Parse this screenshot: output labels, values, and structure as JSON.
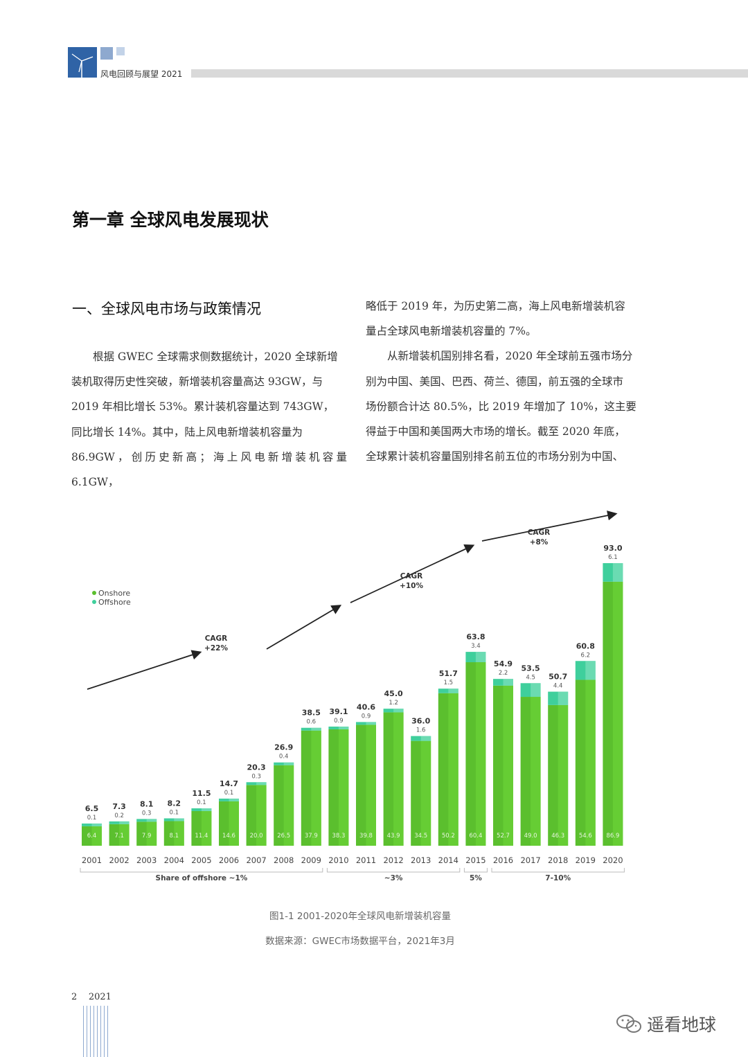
{
  "header": {
    "title": "风电回顾与展望 2021"
  },
  "chapter_title": "第一章 全球风电发展现状",
  "section_title": "一、全球风电市场与政策情况",
  "body": {
    "left_lines": [
      "根据 GWEC 全球需求侧数据统计，2020 全球新增",
      "装机取得历史性突破，新增装机容量高达 93GW，与",
      "2019 年相比增长 53%。累计装机容量达到 743GW，",
      "同比增长 14%。其中，陆上风电新增装机容量为",
      "86.9GW，创历史新高；海上风电新增装机容量 6.1GW，"
    ],
    "right_lines": [
      "略低于 2019 年，为历史第二高，海上风电新增装机容",
      "量占全球风电新增装机容量的 7%。",
      "从新增装机国别排名看，2020 年全球前五强市场分",
      "别为中国、美国、巴西、荷兰、德国，前五强的全球市",
      "场份额合计达 80.5%，比 2019 年增加了 10%，这主要",
      "得益于中国和美国两大市场的增长。截至 2020 年底，",
      "全球累计装机容量国别排名前五位的市场分别为中国、"
    ]
  },
  "chart_data": {
    "type": "bar",
    "stacked": true,
    "categories": [
      "2001",
      "2002",
      "2003",
      "2004",
      "2005",
      "2006",
      "2007",
      "2008",
      "2009",
      "2010",
      "2011",
      "2012",
      "2013",
      "2014",
      "2015",
      "2016",
      "2017",
      "2018",
      "2019",
      "2020"
    ],
    "series": [
      {
        "name": "Onshore",
        "color": "#5bbf2e",
        "values": [
          6.4,
          7.1,
          7.9,
          8.1,
          11.4,
          14.6,
          20.0,
          26.5,
          37.9,
          38.3,
          39.8,
          43.9,
          34.5,
          50.2,
          60.4,
          52.7,
          49.0,
          46.3,
          54.6,
          86.9
        ]
      },
      {
        "name": "Offshore",
        "color": "#3fcf9c",
        "values": [
          0.1,
          0.2,
          0.3,
          0.1,
          0.1,
          0.1,
          0.3,
          0.4,
          0.6,
          0.9,
          0.9,
          1.2,
          1.6,
          1.5,
          3.4,
          2.2,
          4.5,
          4.4,
          6.2,
          6.1
        ]
      }
    ],
    "totals": [
      "6.5",
      "7.3",
      "8.1",
      "8.2",
      "11.5",
      "14.7",
      "20.3",
      "26.9",
      "38.5",
      "39.1",
      "40.6",
      "45.0",
      "36.0",
      "51.7",
      "63.8",
      "54.9",
      "53.5",
      "50.7",
      "60.8",
      "93.0"
    ],
    "onshore_labels": [
      "6.4",
      "7.1",
      "7.9",
      "8.1",
      "11.4",
      "14.6",
      "20.0",
      "26.5",
      "37.9",
      "38.3",
      "39.8",
      "43.9",
      "34.5",
      "50.2",
      "60.4",
      "52.7",
      "49.0",
      "46.3",
      "54.6",
      "86.9"
    ],
    "offshore_labels": [
      "0.1",
      "0.2",
      "0.3",
      "0.1",
      "0.1",
      "0.1",
      "0.3",
      "0.4",
      "0.6",
      "0.9",
      "0.9",
      "1.2",
      "1.6",
      "1.5",
      "3.4",
      "2.2",
      "4.5",
      "4.4",
      "6.2",
      "6.1"
    ],
    "annotations": [
      {
        "label": "CAGR",
        "value": "+22%"
      },
      {
        "label": "CAGR",
        "value": "+10%"
      },
      {
        "label": "CAGR",
        "value": "+8%"
      }
    ],
    "share_groups": [
      {
        "label": "Share of offshore ~1%",
        "from": 0,
        "to": 8
      },
      {
        "label": "~3%",
        "from": 9,
        "to": 13
      },
      {
        "label": "5%",
        "from": 14,
        "to": 14
      },
      {
        "label": "7-10%",
        "from": 15,
        "to": 19
      }
    ],
    "legend_position": "top-left",
    "grid": false,
    "ylim": [
      0,
      93
    ]
  },
  "captions": {
    "figure": "图1-1 2001-2020年全球风电新增装机容量",
    "source": "数据来源：GWEC市场数据平台，2021年3月"
  },
  "footer": {
    "page": "2",
    "year": "2021"
  },
  "watermark": {
    "text": "遥看地球"
  }
}
